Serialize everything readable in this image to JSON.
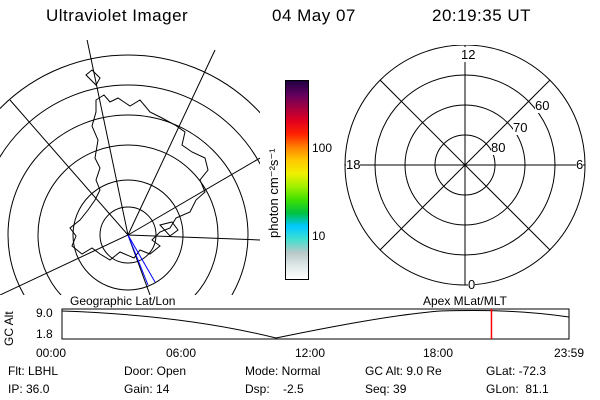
{
  "header": {
    "instrument": "Ultraviolet Imager",
    "date": "04 May 07",
    "time": "20:19:35 UT"
  },
  "colorbar": {
    "unit_label": "photon cm⁻²s⁻¹",
    "ticks": [
      "100",
      "10"
    ],
    "scale": "log",
    "colors": [
      "#ffffff",
      "#e0e8e8",
      "#b8c8c8",
      "#40e0d0",
      "#00c8ff",
      "#00c040",
      "#40e000",
      "#a0f000",
      "#f0f000",
      "#ffc800",
      "#ff8000",
      "#ff2000",
      "#e00020",
      "#a00040",
      "#600060",
      "#200040"
    ]
  },
  "polar_grid": {
    "mlt_labels": {
      "top": "12",
      "left": "18",
      "right": "6",
      "bottom": "0"
    },
    "lat_labels": [
      "60",
      "70",
      "80"
    ]
  },
  "timeline": {
    "left_title": "Geographic Lat/Lon",
    "right_title": "Apex MLat/MLT",
    "yaxis_label": "GC Alt",
    "y_ticks": [
      "9.0",
      "1.8"
    ],
    "x_ticks": [
      "00:00",
      "06:00",
      "12:00",
      "18:00",
      "23:59"
    ],
    "marker_color": "#ff0000",
    "marker_hours": 20.33
  },
  "info": {
    "row1": [
      "Flt: LBHL",
      "Door: Open",
      "Mode: Normal",
      "GC Alt: 9.0 Re",
      "GLat: -72.3"
    ],
    "row2": [
      "IP: 36.0",
      "Gain: 14",
      "Dsp:    -2.5",
      "Seq: 39",
      "GLon:  81.1"
    ]
  }
}
